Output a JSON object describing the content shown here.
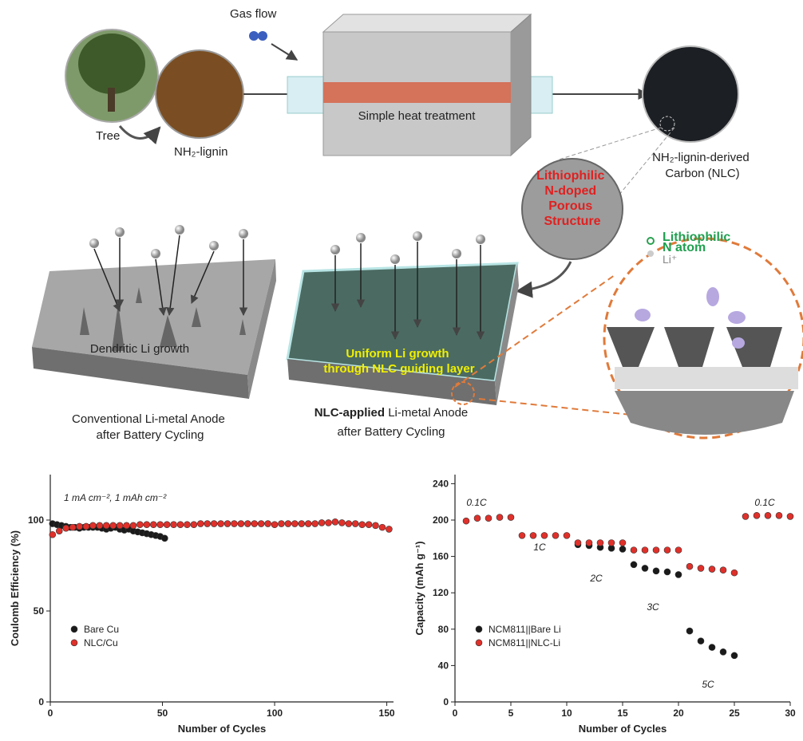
{
  "schematic": {
    "gas_flow": "Gas flow",
    "tree": "Tree",
    "lignin": "NH₂-lignin",
    "heat": "Simple heat treatment",
    "carbon": [
      "NH₂-lignin-derived",
      "Carbon (NLC)"
    ],
    "porous": [
      "Lithiophilic",
      "N-doped",
      "Porous",
      "Structure"
    ],
    "n_atom": [
      "Lithiophilic",
      "N atom"
    ],
    "li_ion": "Li⁺",
    "dendritic": "Dendritic Li growth",
    "uniform": [
      "Uniform Li growth",
      "through NLC guiding layer"
    ],
    "conventional": [
      "Conventional Li-metal Anode",
      "after Battery Cycling"
    ],
    "nlc_anode": [
      "NLC-applied",
      " Li-metal Anode",
      "after Battery Cycling"
    ]
  },
  "chart_data": [
    {
      "type": "scatter",
      "annotation": "1 mA cm⁻², 1 mAh cm⁻²",
      "xlabel": "Number of Cycles",
      "ylabel": "Coulomb Efficiency (%)",
      "xlim": [
        0,
        153
      ],
      "ylim": [
        0,
        125
      ],
      "xticks": [
        0,
        50,
        100,
        150
      ],
      "yticks": [
        0,
        50,
        100
      ],
      "legend": "center left",
      "series": [
        {
          "name": "Bare Cu",
          "color": "#1a1a1a",
          "x": [
            1,
            3,
            5,
            7,
            9,
            11,
            13,
            15,
            17,
            19,
            21,
            23,
            25,
            27,
            29,
            31,
            33,
            35,
            37,
            39,
            41,
            43,
            45,
            47,
            49,
            51
          ],
          "values": [
            98,
            97.5,
            97,
            96.5,
            96,
            96,
            95.5,
            96,
            96,
            96,
            96,
            95.5,
            95,
            95.5,
            96,
            95,
            94.5,
            95,
            94,
            93.5,
            93,
            92.5,
            92,
            91.5,
            91,
            90
          ]
        },
        {
          "name": "NLC/Cu",
          "color": "#e0302a",
          "x": [
            1,
            4,
            7,
            10,
            13,
            16,
            19,
            22,
            25,
            28,
            31,
            34,
            37,
            40,
            43,
            46,
            49,
            52,
            55,
            58,
            61,
            64,
            67,
            70,
            73,
            76,
            79,
            82,
            85,
            88,
            91,
            94,
            97,
            100,
            103,
            106,
            109,
            112,
            115,
            118,
            121,
            124,
            127,
            130,
            133,
            136,
            139,
            142,
            145,
            148,
            151
          ],
          "values": [
            92,
            94,
            95.5,
            96,
            96.5,
            96.5,
            97,
            97,
            97,
            97,
            97,
            97,
            97,
            97.5,
            97.5,
            97.5,
            97.5,
            97.5,
            97.5,
            97.5,
            97.5,
            97.5,
            98,
            98,
            98,
            98,
            98,
            98,
            98,
            98,
            98,
            98,
            98,
            97.5,
            98,
            98,
            98,
            98,
            98,
            98,
            98.5,
            98.5,
            99,
            98.5,
            98,
            98,
            97.5,
            97.5,
            97,
            96,
            95
          ]
        }
      ]
    },
    {
      "type": "scatter",
      "annotations": [
        "0.1C",
        "1C",
        "2C",
        "3C",
        "5C",
        "0.1C"
      ],
      "xlabel": "Number of Cycles",
      "ylabel": "Capacity (mAh g⁻¹)",
      "xlim": [
        0,
        30
      ],
      "ylim": [
        0,
        250
      ],
      "xticks": [
        0,
        5,
        10,
        15,
        20,
        25,
        30
      ],
      "yticks": [
        0,
        40,
        80,
        120,
        160,
        200,
        240
      ],
      "legend": "lower left",
      "series": [
        {
          "name": "NCM811||Bare Li",
          "color": "#1a1a1a",
          "x": [
            11,
            12,
            13,
            14,
            15,
            16,
            17,
            18,
            19,
            20,
            21,
            22,
            23,
            24,
            25
          ],
          "values": [
            173,
            172,
            170,
            169,
            168,
            151,
            147,
            144,
            143,
            140,
            78,
            67,
            60,
            55,
            51
          ]
        },
        {
          "name": "NCM811||NLC-Li",
          "color": "#e0302a",
          "x": [
            1,
            2,
            3,
            4,
            5,
            6,
            7,
            8,
            9,
            10,
            11,
            12,
            13,
            14,
            15,
            16,
            17,
            18,
            19,
            20,
            21,
            22,
            23,
            24,
            25,
            26,
            27,
            28,
            29,
            30
          ],
          "values": [
            199,
            202,
            202,
            203,
            203,
            183,
            183,
            183,
            183,
            183,
            175,
            175,
            175,
            175,
            175,
            167,
            167,
            167,
            167,
            167,
            149,
            147,
            146,
            145,
            142,
            204,
            205,
            205,
            205,
            204
          ]
        }
      ]
    }
  ]
}
